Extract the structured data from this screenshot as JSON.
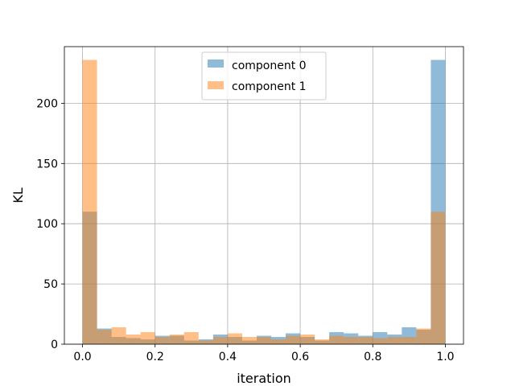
{
  "chart_data": {
    "type": "bar",
    "subtype": "overlaid-histogram",
    "title": "",
    "xlabel": "iteration",
    "ylabel": "KL",
    "xlim": [
      -0.05,
      1.05
    ],
    "ylim": [
      0,
      247
    ],
    "xticks": [
      0.0,
      0.2,
      0.4,
      0.6,
      0.8,
      1.0
    ],
    "xtick_labels": [
      "0.0",
      "0.2",
      "0.4",
      "0.6",
      "0.8",
      "1.0"
    ],
    "yticks": [
      0,
      50,
      100,
      150,
      200
    ],
    "ytick_labels": [
      "0",
      "50",
      "100",
      "150",
      "200"
    ],
    "grid": true,
    "legend_position": "top-center",
    "bin_edges": [
      0.0,
      0.04,
      0.08,
      0.12,
      0.16,
      0.2,
      0.24,
      0.28,
      0.32,
      0.36,
      0.4,
      0.44,
      0.48,
      0.52,
      0.56,
      0.6,
      0.64,
      0.68,
      0.72,
      0.76,
      0.8,
      0.84,
      0.88,
      0.92,
      0.96,
      1.0
    ],
    "series": [
      {
        "name": "component 0",
        "color": "#1f77b4",
        "alpha": 0.5,
        "values": [
          110,
          13,
          6,
          5,
          4,
          7,
          7,
          3,
          4,
          8,
          6,
          3,
          7,
          6,
          9,
          6,
          3,
          10,
          9,
          7,
          10,
          8,
          14,
          12,
          236
        ]
      },
      {
        "name": "component 1",
        "color": "#ff7f0e",
        "alpha": 0.5,
        "values": [
          236,
          12,
          14,
          8,
          10,
          6,
          8,
          10,
          3,
          6,
          9,
          6,
          6,
          4,
          7,
          8,
          4,
          7,
          6,
          6,
          5,
          6,
          6,
          13,
          110
        ]
      }
    ]
  }
}
